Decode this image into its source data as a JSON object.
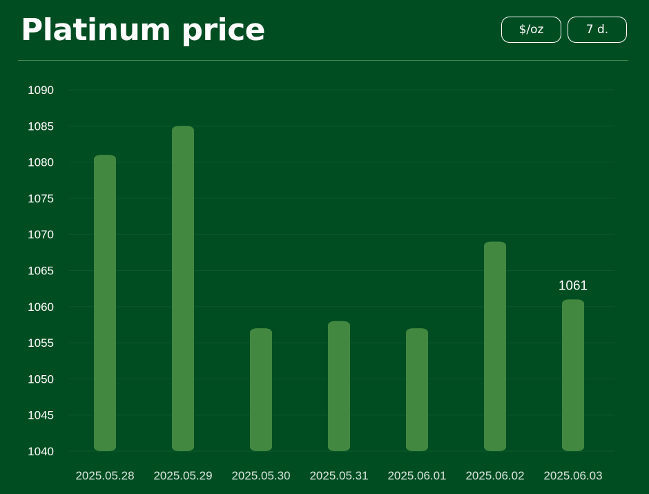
{
  "header": {
    "title": "Platinum price",
    "unit_button": "$/oz",
    "range_button": "7 d."
  },
  "colors": {
    "background": "#014d22",
    "bar": "#438840",
    "grid": "#0b5a2a",
    "divider": "#3f8a4e"
  },
  "chart_data": {
    "type": "bar",
    "title": "Platinum price",
    "categories": [
      "2025.05.28",
      "2025.05.29",
      "2025.05.30",
      "2025.05.31",
      "2025.06.01",
      "2025.06.02",
      "2025.06.03"
    ],
    "values": [
      1081,
      1085,
      1057,
      1058,
      1057,
      1069,
      1061
    ],
    "ylim": [
      1040,
      1090
    ],
    "yticks": [
      1040,
      1045,
      1050,
      1055,
      1060,
      1065,
      1070,
      1075,
      1080,
      1085,
      1090
    ],
    "grid": true,
    "data_labels": [
      {
        "category": "2025.06.03",
        "text": "1061"
      }
    ]
  }
}
